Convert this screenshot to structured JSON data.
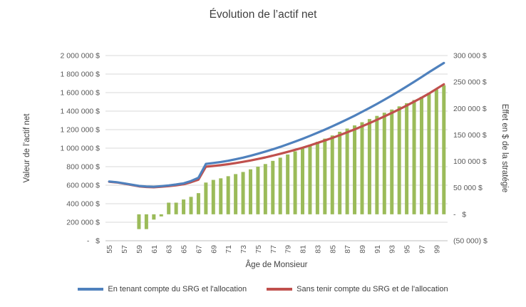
{
  "title": "Évolution de l’actif net",
  "axes": {
    "left_title": "Valeur de l’actif  net",
    "right_title": "Effet en $ de la stratégie",
    "x_title": "Âge de Monsieur",
    "left_ticks": [
      "-   $",
      "200 000 $",
      "400 000 $",
      "600 000 $",
      "800 000 $",
      "1 000 000 $",
      "1 200 000 $",
      "1 400 000 $",
      "1 600 000 $",
      "1 800 000 $",
      "2 000 000 $"
    ],
    "right_ticks": [
      "(50 000) $",
      "-   $",
      "50 000 $",
      "100 000 $",
      "150 000 $",
      "200 000 $",
      "250 000 $",
      "300 000 $"
    ],
    "x_ticks": [
      "55",
      "57",
      "59",
      "61",
      "63",
      "65",
      "67",
      "69",
      "71",
      "73",
      "75",
      "77",
      "79",
      "81",
      "83",
      "85",
      "87",
      "89",
      "91",
      "93",
      "95",
      "97",
      "99"
    ]
  },
  "legend": [
    {
      "label": "En tenant compte du SRG et l'allocation",
      "color": "#4f81bd"
    },
    {
      "label": "Sans tenir compte du SRG et de l'allocation",
      "color": "#c0504d"
    }
  ],
  "colors": {
    "gridline": "#d9d9d9",
    "axis_line": "#bfbfbf",
    "bar": "#9bbb59"
  },
  "chart_data": {
    "type": "combo",
    "title": "Évolution de l’actif net",
    "xlabel": "Âge de Monsieur",
    "ylabel_left": "Valeur de l’actif net",
    "ylabel_right": "Effet en $ de la stratégie",
    "left_axis": {
      "min": 0,
      "max": 2000000,
      "step": 200000
    },
    "right_axis": {
      "min": -50000,
      "max": 300000,
      "step": 50000
    },
    "x": [
      55,
      56,
      57,
      58,
      59,
      60,
      61,
      62,
      63,
      64,
      65,
      66,
      67,
      68,
      69,
      70,
      71,
      72,
      73,
      74,
      75,
      76,
      77,
      78,
      79,
      80,
      81,
      82,
      83,
      84,
      85,
      86,
      87,
      88,
      89,
      90,
      91,
      92,
      93,
      94,
      95,
      96,
      97,
      98,
      99,
      100
    ],
    "series": [
      {
        "name": "En tenant compte du SRG et l'allocation",
        "type": "line",
        "axis": "left",
        "color": "#4f81bd",
        "values": [
          640000,
          632000,
          620000,
          606000,
          592000,
          585000,
          583000,
          590000,
          598000,
          608000,
          620000,
          645000,
          680000,
          830000,
          840000,
          851000,
          864000,
          880000,
          898000,
          918000,
          940000,
          963000,
          988000,
          1014000,
          1042000,
          1071000,
          1101000,
          1133000,
          1166000,
          1200000,
          1236000,
          1273000,
          1311000,
          1351000,
          1392000,
          1434000,
          1478000,
          1523000,
          1569000,
          1617000,
          1666000,
          1716000,
          1768000,
          1820000,
          1870000,
          1920000
        ]
      },
      {
        "name": "Sans tenir compte du SRG et de l'allocation",
        "type": "line",
        "axis": "left",
        "color": "#c0504d",
        "values": [
          638000,
          630000,
          617000,
          602000,
          588000,
          581000,
          578000,
          584000,
          590000,
          599000,
          610000,
          632000,
          660000,
          800000,
          808000,
          817000,
          827000,
          839000,
          852000,
          867000,
          883000,
          900000,
          919000,
          939000,
          960000,
          982000,
          1005000,
          1030000,
          1056000,
          1083000,
          1111000,
          1140000,
          1171000,
          1203000,
          1236000,
          1270000,
          1306000,
          1343000,
          1381000,
          1420000,
          1460000,
          1502000,
          1545000,
          1590000,
          1640000,
          1690000
        ]
      },
      {
        "name": "Effet en $ de la stratégie",
        "type": "bar",
        "axis": "right",
        "color": "#9bbb59",
        "values": [
          null,
          null,
          null,
          null,
          -28000,
          -28000,
          -10000,
          -4000,
          22000,
          22000,
          28000,
          33000,
          40000,
          60000,
          65000,
          68000,
          72000,
          76000,
          80000,
          85000,
          90000,
          95000,
          101000,
          107000,
          113000,
          119000,
          125000,
          131000,
          137000,
          143000,
          149000,
          156000,
          162000,
          168000,
          174000,
          180000,
          186000,
          192000,
          198000,
          204000,
          210000,
          216000,
          222000,
          228000,
          236000,
          244000
        ]
      }
    ]
  }
}
